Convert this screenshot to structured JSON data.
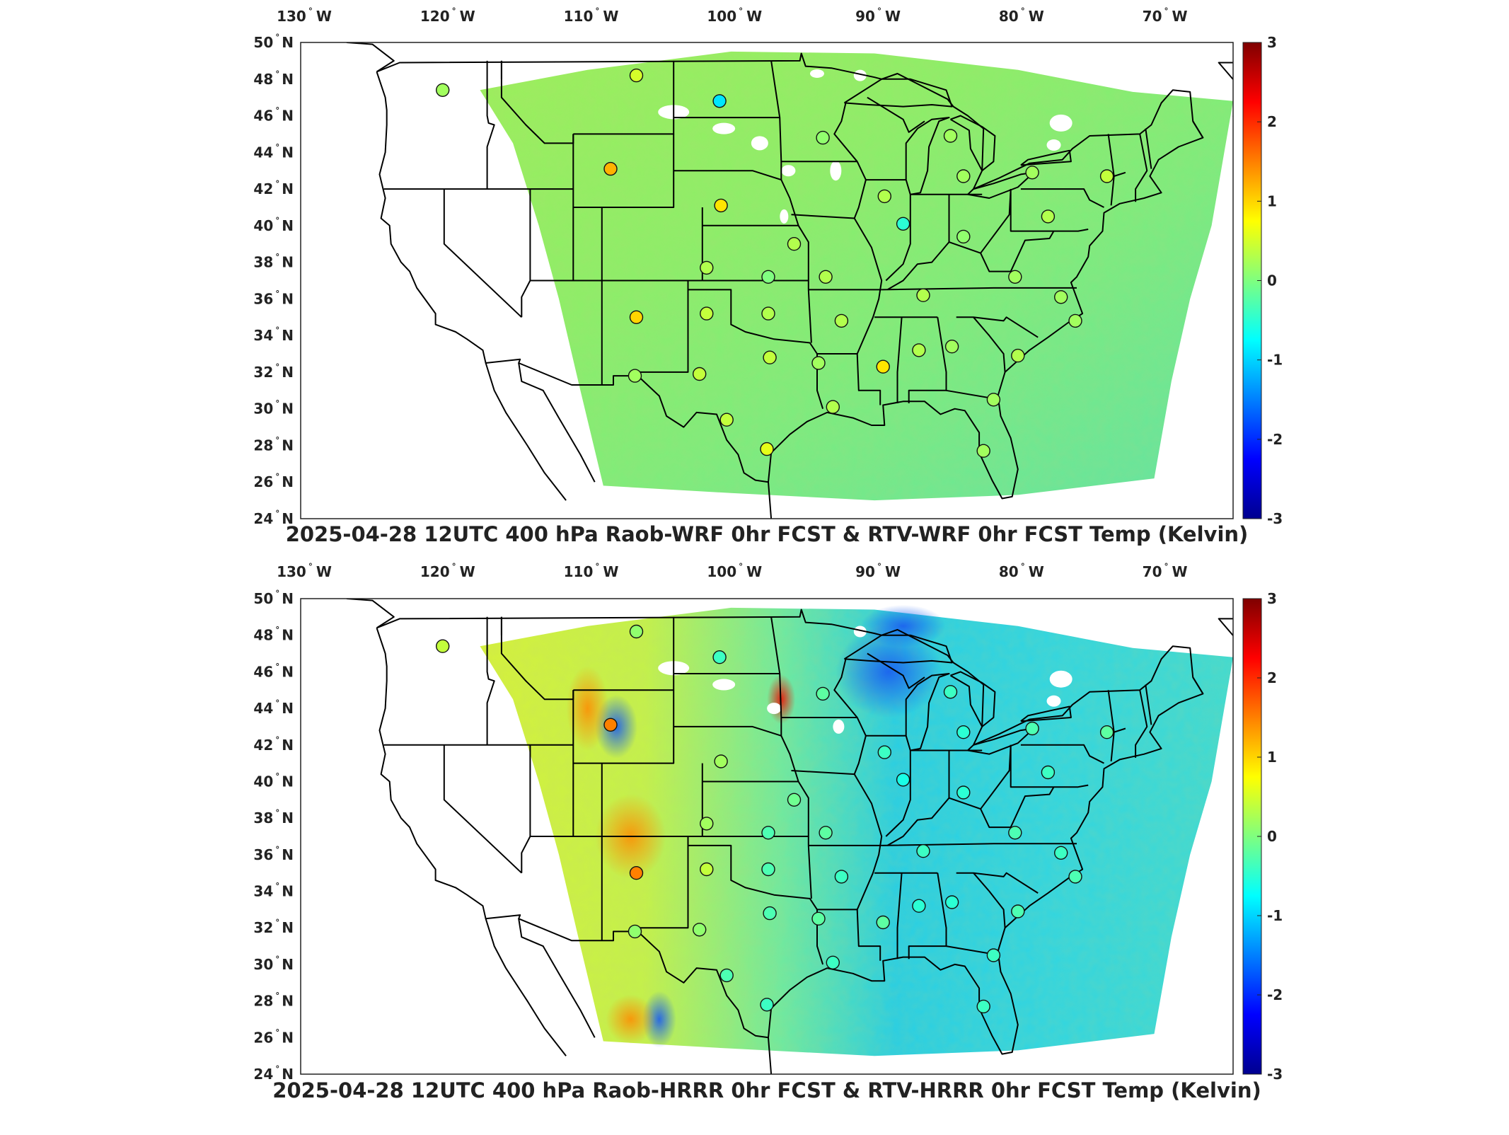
{
  "panels": [
    {
      "title": "2025-04-28 12UTC 400 hPa Raob-WRF 0hr FCST & RTV-WRF 0hr FCST Temp (Kelvin)",
      "field_style": "uniform",
      "stations": [
        {
          "lon": -120.1,
          "lat": 47.4,
          "value": 0.2
        },
        {
          "lon": -106.6,
          "lat": 48.2,
          "value": 0.5
        },
        {
          "lon": -100.8,
          "lat": 46.8,
          "value": -0.9
        },
        {
          "lon": -93.6,
          "lat": 44.8,
          "value": 0.1
        },
        {
          "lon": -84.7,
          "lat": 44.9,
          "value": 0.2
        },
        {
          "lon": -108.4,
          "lat": 43.1,
          "value": 1.2
        },
        {
          "lon": -100.7,
          "lat": 41.1,
          "value": 0.9
        },
        {
          "lon": -89.3,
          "lat": 41.6,
          "value": 0.3
        },
        {
          "lon": -88.0,
          "lat": 40.1,
          "value": -0.5
        },
        {
          "lon": -83.8,
          "lat": 42.7,
          "value": 0.2
        },
        {
          "lon": -79.0,
          "lat": 42.9,
          "value": 0.2
        },
        {
          "lon": -73.8,
          "lat": 42.7,
          "value": 0.4
        },
        {
          "lon": -77.9,
          "lat": 40.5,
          "value": 0.3
        },
        {
          "lon": -83.8,
          "lat": 39.4,
          "value": 0.1
        },
        {
          "lon": -95.6,
          "lat": 39.0,
          "value": 0.3
        },
        {
          "lon": -101.7,
          "lat": 37.7,
          "value": 0.3
        },
        {
          "lon": -97.4,
          "lat": 37.2,
          "value": 0.0
        },
        {
          "lon": -93.4,
          "lat": 37.2,
          "value": 0.3
        },
        {
          "lon": -86.6,
          "lat": 36.2,
          "value": 0.3
        },
        {
          "lon": -80.2,
          "lat": 37.2,
          "value": 0.2
        },
        {
          "lon": -77.0,
          "lat": 36.1,
          "value": 0.2
        },
        {
          "lon": -106.6,
          "lat": 35.0,
          "value": 1.0
        },
        {
          "lon": -101.7,
          "lat": 35.2,
          "value": 0.4
        },
        {
          "lon": -97.4,
          "lat": 35.2,
          "value": 0.3
        },
        {
          "lon": -92.3,
          "lat": 34.8,
          "value": 0.3
        },
        {
          "lon": -84.6,
          "lat": 33.4,
          "value": 0.2
        },
        {
          "lon": -86.9,
          "lat": 33.2,
          "value": 0.3
        },
        {
          "lon": -89.4,
          "lat": 32.3,
          "value": 0.9
        },
        {
          "lon": -93.9,
          "lat": 32.5,
          "value": 0.2
        },
        {
          "lon": -97.3,
          "lat": 32.8,
          "value": 0.4
        },
        {
          "lon": -102.2,
          "lat": 31.9,
          "value": 0.4
        },
        {
          "lon": -106.7,
          "lat": 31.8,
          "value": 0.2
        },
        {
          "lon": -100.3,
          "lat": 29.4,
          "value": 0.4
        },
        {
          "lon": -97.5,
          "lat": 27.8,
          "value": 0.6
        },
        {
          "lon": -92.9,
          "lat": 30.1,
          "value": 0.3
        },
        {
          "lon": -81.7,
          "lat": 30.5,
          "value": 0.2
        },
        {
          "lon": -80.0,
          "lat": 32.9,
          "value": 0.3
        },
        {
          "lon": -76.0,
          "lat": 34.8,
          "value": 0.2
        },
        {
          "lon": -82.4,
          "lat": 27.7,
          "value": 0.2
        }
      ]
    },
    {
      "title": "2025-04-28 12UTC 400 hPa Raob-HRRR 0hr FCST & RTV-HRRR 0hr FCST Temp (Kelvin)",
      "field_style": "gradient",
      "stations": [
        {
          "lon": -120.1,
          "lat": 47.4,
          "value": 0.4
        },
        {
          "lon": -106.6,
          "lat": 48.2,
          "value": 0.1
        },
        {
          "lon": -100.8,
          "lat": 46.8,
          "value": -0.4
        },
        {
          "lon": -93.6,
          "lat": 44.8,
          "value": -0.2
        },
        {
          "lon": -84.7,
          "lat": 44.9,
          "value": -0.4
        },
        {
          "lon": -108.4,
          "lat": 43.1,
          "value": 1.5
        },
        {
          "lon": -100.7,
          "lat": 41.1,
          "value": 0.2
        },
        {
          "lon": -89.3,
          "lat": 41.6,
          "value": -0.4
        },
        {
          "lon": -88.0,
          "lat": 40.1,
          "value": -0.6
        },
        {
          "lon": -83.8,
          "lat": 42.7,
          "value": -0.5
        },
        {
          "lon": -79.0,
          "lat": 42.9,
          "value": -0.3
        },
        {
          "lon": -73.8,
          "lat": 42.7,
          "value": -0.2
        },
        {
          "lon": -77.9,
          "lat": 40.5,
          "value": -0.4
        },
        {
          "lon": -83.8,
          "lat": 39.4,
          "value": -0.5
        },
        {
          "lon": -95.6,
          "lat": 39.0,
          "value": -0.1
        },
        {
          "lon": -101.7,
          "lat": 37.7,
          "value": 0.2
        },
        {
          "lon": -97.4,
          "lat": 37.2,
          "value": -0.3
        },
        {
          "lon": -93.4,
          "lat": 37.2,
          "value": -0.2
        },
        {
          "lon": -86.6,
          "lat": 36.2,
          "value": -0.4
        },
        {
          "lon": -80.2,
          "lat": 37.2,
          "value": -0.3
        },
        {
          "lon": -77.0,
          "lat": 36.1,
          "value": -0.4
        },
        {
          "lon": -106.6,
          "lat": 35.0,
          "value": 1.5
        },
        {
          "lon": -101.7,
          "lat": 35.2,
          "value": 0.4
        },
        {
          "lon": -97.4,
          "lat": 35.2,
          "value": -0.3
        },
        {
          "lon": -92.3,
          "lat": 34.8,
          "value": -0.4
        },
        {
          "lon": -84.6,
          "lat": 33.4,
          "value": -0.5
        },
        {
          "lon": -86.9,
          "lat": 33.2,
          "value": -0.5
        },
        {
          "lon": -89.4,
          "lat": 32.3,
          "value": -0.2
        },
        {
          "lon": -93.9,
          "lat": 32.5,
          "value": -0.2
        },
        {
          "lon": -97.3,
          "lat": 32.8,
          "value": -0.3
        },
        {
          "lon": -102.2,
          "lat": 31.9,
          "value": 0.1
        },
        {
          "lon": -106.7,
          "lat": 31.8,
          "value": 0.1
        },
        {
          "lon": -100.3,
          "lat": 29.4,
          "value": -0.3
        },
        {
          "lon": -97.5,
          "lat": 27.8,
          "value": -0.4
        },
        {
          "lon": -92.9,
          "lat": 30.1,
          "value": -0.4
        },
        {
          "lon": -81.7,
          "lat": 30.5,
          "value": -0.4
        },
        {
          "lon": -80.0,
          "lat": 32.9,
          "value": -0.3
        },
        {
          "lon": -76.0,
          "lat": 34.8,
          "value": -0.3
        },
        {
          "lon": -82.4,
          "lat": 27.7,
          "value": -0.4
        }
      ]
    }
  ],
  "lon_labels": [
    "130",
    "120",
    "110",
    "100",
    "90",
    "80",
    "70"
  ],
  "lon_hemisphere": "W",
  "lat_labels": [
    "50",
    "48",
    "46",
    "44",
    "42",
    "40",
    "38",
    "36",
    "34",
    "32",
    "30",
    "28",
    "26",
    "24"
  ],
  "lat_hemisphere": "N",
  "degree_symbol": "°",
  "colorbar": {
    "range": [
      -3,
      3
    ],
    "ticks": [
      "3",
      "2",
      "1",
      "0",
      "-1",
      "-2",
      "-3"
    ],
    "colormap": "jet"
  },
  "map_extent": {
    "lon_min": -130,
    "lon_max": -65,
    "lat_min": 24,
    "lat_max": 50
  }
}
